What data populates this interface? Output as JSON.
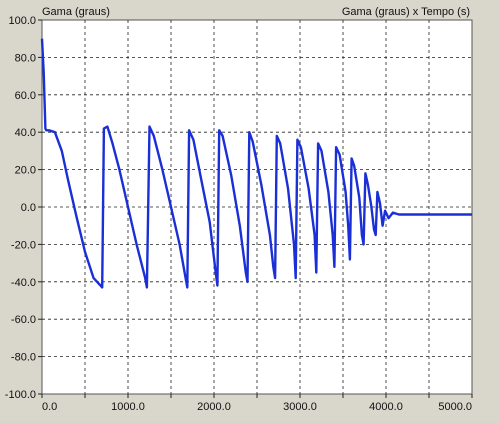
{
  "chart_data": {
    "type": "line",
    "title": "Gama (graus) x Tempo (s)",
    "ylabel": "Gama (graus)",
    "xlabel": "",
    "xlim": [
      0,
      5000
    ],
    "ylim": [
      -100,
      100
    ],
    "x_ticks": [
      0,
      500,
      1000,
      1500,
      2000,
      2500,
      3000,
      3500,
      4000,
      4500,
      5000
    ],
    "x_tick_labels": [
      "0.0",
      "",
      "1000.0",
      "",
      "2000.0",
      "",
      "3000.0",
      "",
      "4000.0",
      "",
      "5000.0"
    ],
    "y_ticks": [
      100,
      80,
      60,
      40,
      20,
      0,
      -20,
      -40,
      -60,
      -80,
      -100
    ],
    "y_tick_labels": [
      "100.0",
      "80.0",
      "60.0",
      "40.0",
      "20.0",
      "0.0",
      "-20.0",
      "-40.0",
      "-60.0",
      "-80.0",
      "-100.0"
    ],
    "grid": true,
    "line_color": "#1a2fd6",
    "series": [
      {
        "name": "",
        "x": [
          0,
          20,
          40,
          50,
          80,
          150,
          230,
          300,
          400,
          500,
          600,
          680,
          700,
          720,
          760,
          820,
          900,
          1000,
          1100,
          1200,
          1220,
          1250,
          1300,
          1400,
          1500,
          1600,
          1670,
          1690,
          1710,
          1760,
          1850,
          1950,
          2020,
          2040,
          2060,
          2100,
          2200,
          2300,
          2370,
          2390,
          2410,
          2450,
          2550,
          2650,
          2690,
          2710,
          2730,
          2770,
          2860,
          2930,
          2950,
          2970,
          3010,
          3100,
          3170,
          3190,
          3210,
          3250,
          3330,
          3380,
          3400,
          3420,
          3460,
          3530,
          3560,
          3580,
          3600,
          3630,
          3690,
          3720,
          3740,
          3760,
          3790,
          3830,
          3860,
          3880,
          3900,
          3930,
          3960,
          3990,
          4030,
          4080,
          4150,
          4250,
          4500,
          4800,
          5000
        ],
        "y": [
          90,
          72,
          42,
          41,
          41,
          40,
          30,
          15,
          -5,
          -24,
          -38,
          -42,
          -43,
          42,
          43,
          34,
          20,
          0,
          -20,
          -38,
          -43,
          43,
          38,
          20,
          0,
          -20,
          -38,
          -43,
          41,
          36,
          15,
          -8,
          -35,
          -42,
          41,
          38,
          17,
          -10,
          -35,
          -40,
          40,
          35,
          12,
          -15,
          -32,
          -38,
          38,
          34,
          10,
          -20,
          -38,
          36,
          32,
          10,
          -15,
          -35,
          34,
          30,
          8,
          -15,
          -32,
          32,
          28,
          8,
          -10,
          -28,
          26,
          22,
          5,
          -15,
          -20,
          18,
          12,
          0,
          -12,
          -15,
          8,
          2,
          -10,
          -2,
          -6,
          -3,
          -4,
          -4,
          -4,
          -4,
          -4
        ]
      }
    ]
  }
}
